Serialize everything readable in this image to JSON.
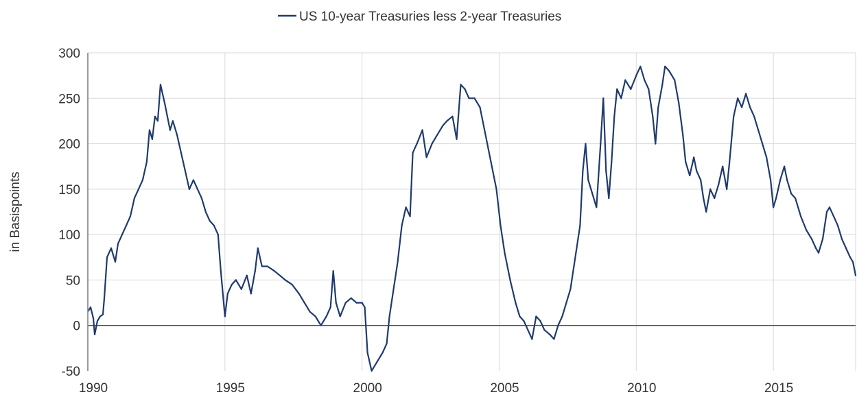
{
  "chart_data": {
    "type": "line",
    "title": "",
    "xlabel": "",
    "ylabel": "in Basispoints",
    "xlim": [
      1990,
      2018
    ],
    "ylim": [
      -50,
      300
    ],
    "x_ticks": [
      "1990",
      "1995",
      "2000",
      "2005",
      "2010",
      "2015"
    ],
    "y_ticks": [
      "300",
      "250",
      "200",
      "150",
      "100",
      "50",
      "0",
      "-50"
    ],
    "grid": true,
    "legend_position": "top-center",
    "zero_line": true,
    "colors": {
      "series": "#1f3a6e",
      "grid": "#d9d9d9",
      "zero_line": "#333333",
      "frame": "#9a9a9a"
    },
    "series": [
      {
        "name": "US 10-year Treasuries less 2-year Treasuries",
        "points": [
          [
            1990.0,
            15
          ],
          [
            1990.1,
            20
          ],
          [
            1990.2,
            8
          ],
          [
            1990.25,
            -10
          ],
          [
            1990.35,
            5
          ],
          [
            1990.45,
            10
          ],
          [
            1990.55,
            12
          ],
          [
            1990.6,
            30
          ],
          [
            1990.7,
            75
          ],
          [
            1990.85,
            85
          ],
          [
            1991.0,
            70
          ],
          [
            1991.1,
            90
          ],
          [
            1991.25,
            100
          ],
          [
            1991.4,
            110
          ],
          [
            1991.55,
            120
          ],
          [
            1991.7,
            140
          ],
          [
            1991.85,
            150
          ],
          [
            1992.0,
            160
          ],
          [
            1992.15,
            180
          ],
          [
            1992.25,
            215
          ],
          [
            1992.35,
            205
          ],
          [
            1992.45,
            230
          ],
          [
            1992.55,
            225
          ],
          [
            1992.65,
            265
          ],
          [
            1992.8,
            245
          ],
          [
            1992.9,
            230
          ],
          [
            1993.0,
            215
          ],
          [
            1993.1,
            225
          ],
          [
            1993.25,
            210
          ],
          [
            1993.4,
            190
          ],
          [
            1993.55,
            170
          ],
          [
            1993.7,
            150
          ],
          [
            1993.85,
            160
          ],
          [
            1994.0,
            150
          ],
          [
            1994.15,
            140
          ],
          [
            1994.3,
            125
          ],
          [
            1994.45,
            115
          ],
          [
            1994.6,
            110
          ],
          [
            1994.75,
            100
          ],
          [
            1994.85,
            60
          ],
          [
            1995.0,
            10
          ],
          [
            1995.1,
            35
          ],
          [
            1995.25,
            45
          ],
          [
            1995.4,
            50
          ],
          [
            1995.6,
            40
          ],
          [
            1995.8,
            55
          ],
          [
            1995.95,
            35
          ],
          [
            1996.1,
            60
          ],
          [
            1996.2,
            85
          ],
          [
            1996.35,
            65
          ],
          [
            1996.55,
            65
          ],
          [
            1996.8,
            60
          ],
          [
            1997.0,
            55
          ],
          [
            1997.2,
            50
          ],
          [
            1997.45,
            45
          ],
          [
            1997.7,
            35
          ],
          [
            1997.9,
            25
          ],
          [
            1998.1,
            15
          ],
          [
            1998.3,
            10
          ],
          [
            1998.5,
            0
          ],
          [
            1998.7,
            10
          ],
          [
            1998.85,
            20
          ],
          [
            1998.95,
            60
          ],
          [
            1999.05,
            25
          ],
          [
            1999.2,
            10
          ],
          [
            1999.4,
            25
          ],
          [
            1999.6,
            30
          ],
          [
            1999.8,
            25
          ],
          [
            2000.0,
            25
          ],
          [
            2000.1,
            20
          ],
          [
            2000.2,
            -30
          ],
          [
            2000.35,
            -50
          ],
          [
            2000.55,
            -40
          ],
          [
            2000.75,
            -30
          ],
          [
            2000.9,
            -20
          ],
          [
            2001.0,
            10
          ],
          [
            2001.15,
            40
          ],
          [
            2001.3,
            70
          ],
          [
            2001.45,
            110
          ],
          [
            2001.6,
            130
          ],
          [
            2001.75,
            120
          ],
          [
            2001.85,
            190
          ],
          [
            2002.0,
            200
          ],
          [
            2002.2,
            215
          ],
          [
            2002.35,
            185
          ],
          [
            2002.55,
            200
          ],
          [
            2002.75,
            210
          ],
          [
            2002.95,
            220
          ],
          [
            2003.1,
            225
          ],
          [
            2003.3,
            230
          ],
          [
            2003.45,
            205
          ],
          [
            2003.6,
            265
          ],
          [
            2003.75,
            260
          ],
          [
            2003.9,
            250
          ],
          [
            2004.1,
            250
          ],
          [
            2004.3,
            240
          ],
          [
            2004.5,
            210
          ],
          [
            2004.7,
            180
          ],
          [
            2004.9,
            150
          ],
          [
            2005.05,
            110
          ],
          [
            2005.2,
            80
          ],
          [
            2005.4,
            50
          ],
          [
            2005.6,
            25
          ],
          [
            2005.75,
            10
          ],
          [
            2005.9,
            5
          ],
          [
            2006.05,
            -5
          ],
          [
            2006.2,
            -15
          ],
          [
            2006.35,
            10
          ],
          [
            2006.5,
            5
          ],
          [
            2006.65,
            -5
          ],
          [
            2006.85,
            -10
          ],
          [
            2007.0,
            -15
          ],
          [
            2007.15,
            0
          ],
          [
            2007.3,
            10
          ],
          [
            2007.45,
            25
          ],
          [
            2007.6,
            40
          ],
          [
            2007.8,
            80
          ],
          [
            2007.95,
            110
          ],
          [
            2008.05,
            170
          ],
          [
            2008.15,
            200
          ],
          [
            2008.25,
            160
          ],
          [
            2008.4,
            145
          ],
          [
            2008.55,
            130
          ],
          [
            2008.7,
            200
          ],
          [
            2008.8,
            250
          ],
          [
            2008.9,
            170
          ],
          [
            2009.0,
            140
          ],
          [
            2009.1,
            180
          ],
          [
            2009.2,
            230
          ],
          [
            2009.3,
            260
          ],
          [
            2009.45,
            250
          ],
          [
            2009.6,
            270
          ],
          [
            2009.8,
            260
          ],
          [
            2010.0,
            275
          ],
          [
            2010.15,
            285
          ],
          [
            2010.3,
            270
          ],
          [
            2010.45,
            260
          ],
          [
            2010.6,
            230
          ],
          [
            2010.7,
            200
          ],
          [
            2010.8,
            240
          ],
          [
            2010.95,
            265
          ],
          [
            2011.05,
            285
          ],
          [
            2011.2,
            280
          ],
          [
            2011.4,
            270
          ],
          [
            2011.55,
            245
          ],
          [
            2011.7,
            210
          ],
          [
            2011.8,
            180
          ],
          [
            2011.95,
            165
          ],
          [
            2012.1,
            185
          ],
          [
            2012.2,
            170
          ],
          [
            2012.35,
            160
          ],
          [
            2012.45,
            140
          ],
          [
            2012.55,
            125
          ],
          [
            2012.7,
            150
          ],
          [
            2012.85,
            140
          ],
          [
            2013.0,
            155
          ],
          [
            2013.15,
            175
          ],
          [
            2013.3,
            150
          ],
          [
            2013.4,
            180
          ],
          [
            2013.55,
            230
          ],
          [
            2013.7,
            250
          ],
          [
            2013.85,
            240
          ],
          [
            2014.0,
            255
          ],
          [
            2014.15,
            240
          ],
          [
            2014.3,
            230
          ],
          [
            2014.45,
            215
          ],
          [
            2014.6,
            200
          ],
          [
            2014.75,
            185
          ],
          [
            2014.9,
            160
          ],
          [
            2015.0,
            130
          ],
          [
            2015.1,
            140
          ],
          [
            2015.25,
            160
          ],
          [
            2015.4,
            175
          ],
          [
            2015.5,
            160
          ],
          [
            2015.65,
            145
          ],
          [
            2015.8,
            140
          ],
          [
            2016.0,
            120
          ],
          [
            2016.2,
            105
          ],
          [
            2016.4,
            95
          ],
          [
            2016.55,
            85
          ],
          [
            2016.65,
            80
          ],
          [
            2016.8,
            95
          ],
          [
            2016.95,
            125
          ],
          [
            2017.05,
            130
          ],
          [
            2017.2,
            120
          ],
          [
            2017.35,
            110
          ],
          [
            2017.5,
            95
          ],
          [
            2017.65,
            85
          ],
          [
            2017.8,
            75
          ],
          [
            2017.9,
            70
          ],
          [
            2018.0,
            55
          ]
        ]
      }
    ]
  }
}
